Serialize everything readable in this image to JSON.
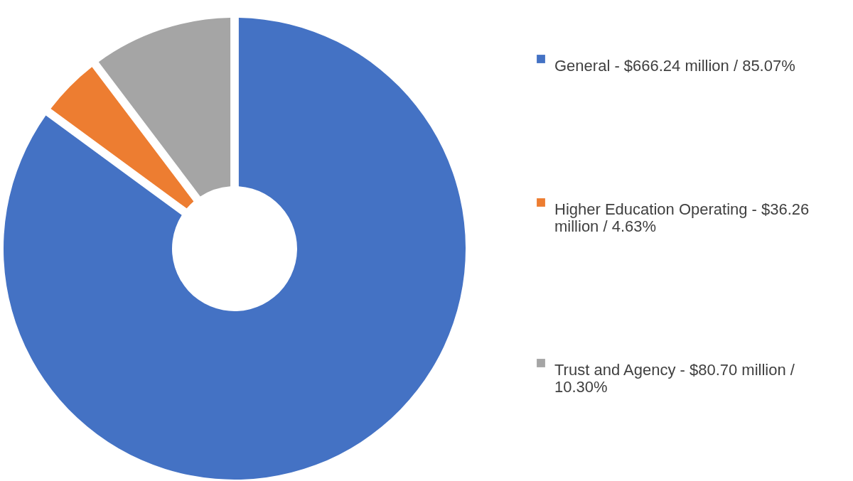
{
  "chart_data": {
    "type": "donut",
    "categories": [
      "General - $666.24 million / 85.07%",
      "Higher Education Operating - $36.26 million / 4.63%",
      "Trust and Agency - $80.70 million / 10.30%"
    ],
    "values": [
      85.07,
      4.63,
      10.3
    ],
    "colors": [
      "#4472c4",
      "#ed7d31",
      "#a5a5a5"
    ],
    "legend": "right"
  }
}
